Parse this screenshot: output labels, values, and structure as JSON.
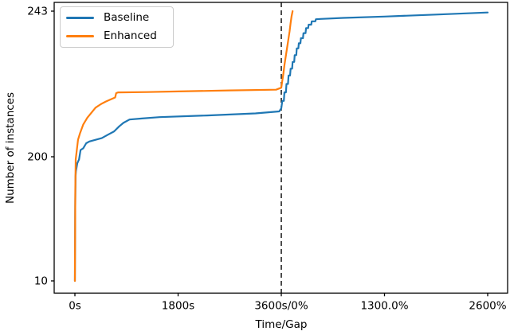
{
  "chart_data": {
    "type": "line",
    "title": "",
    "xlabel": "Time/Gap",
    "ylabel": "Number of instances",
    "x_axis": {
      "composite": true,
      "tick_labels": [
        "0s",
        "1800s",
        "3600s/0%",
        "1300.0%",
        "2600%"
      ],
      "tick_units": [
        0,
        1,
        2,
        3,
        4
      ],
      "unit_description": "composite axis: units 0-2 are solving time (u*1800 seconds, 0s to 3600s); units 2-4 are optimality gap ((u-2)*1300 percent, 0% to 2600%)",
      "vline_unit": 2,
      "vline_style": "black dashed vertical cutoff line at 3600s/0%"
    },
    "y_axis": {
      "tick_labels": [
        "10",
        "200",
        "243"
      ],
      "tick_values": [
        10,
        200,
        243
      ],
      "ylim": [
        10,
        243
      ],
      "scale_note": "non-linear axis: 10..200 compressed below, 200..243 expanded above"
    },
    "grid": false,
    "legend_position": "upper left",
    "series": [
      {
        "name": "Baseline",
        "color": "#1f77b4",
        "points": [
          [
            0,
            10
          ],
          [
            0.003,
            123
          ],
          [
            0.006,
            170
          ],
          [
            0.01,
            178
          ],
          [
            0.023,
            190
          ],
          [
            0.04,
            196
          ],
          [
            0.055,
            202
          ],
          [
            0.08,
            202.5
          ],
          [
            0.11,
            204
          ],
          [
            0.14,
            204.5
          ],
          [
            0.2,
            205
          ],
          [
            0.26,
            205.5
          ],
          [
            0.32,
            206.5
          ],
          [
            0.38,
            207.5
          ],
          [
            0.43,
            209
          ],
          [
            0.47,
            210
          ],
          [
            0.53,
            211
          ],
          [
            0.65,
            211.3
          ],
          [
            0.82,
            211.7
          ],
          [
            1.28,
            212.2
          ],
          [
            1.75,
            212.8
          ],
          [
            1.98,
            213.4
          ],
          [
            2.0,
            214.3
          ],
          [
            2.01,
            216.5
          ],
          [
            2.025,
            216.5
          ],
          [
            2.03,
            219
          ],
          [
            2.045,
            219
          ],
          [
            2.05,
            221.5
          ],
          [
            2.065,
            221.5
          ],
          [
            2.07,
            224
          ],
          [
            2.085,
            224
          ],
          [
            2.09,
            226
          ],
          [
            2.105,
            226
          ],
          [
            2.11,
            228
          ],
          [
            2.125,
            228
          ],
          [
            2.13,
            230
          ],
          [
            2.145,
            230
          ],
          [
            2.15,
            232
          ],
          [
            2.165,
            232
          ],
          [
            2.17,
            233.5
          ],
          [
            2.185,
            233.5
          ],
          [
            2.19,
            235
          ],
          [
            2.21,
            235
          ],
          [
            2.215,
            236.5
          ],
          [
            2.235,
            236.5
          ],
          [
            2.24,
            238
          ],
          [
            2.26,
            238
          ],
          [
            2.265,
            239
          ],
          [
            2.29,
            239
          ],
          [
            2.295,
            240
          ],
          [
            2.33,
            240
          ],
          [
            2.335,
            240.6
          ],
          [
            2.38,
            240.7
          ],
          [
            2.6,
            241
          ],
          [
            3.0,
            241.4
          ],
          [
            3.5,
            242
          ],
          [
            4.0,
            242.6
          ]
        ]
      },
      {
        "name": "Enhanced",
        "color": "#ff7f0e",
        "points": [
          [
            0,
            10
          ],
          [
            0.004,
            150
          ],
          [
            0.008,
            196
          ],
          [
            0.015,
            201
          ],
          [
            0.03,
            205
          ],
          [
            0.05,
            207
          ],
          [
            0.08,
            209.5
          ],
          [
            0.12,
            211.5
          ],
          [
            0.16,
            213
          ],
          [
            0.2,
            214.5
          ],
          [
            0.25,
            215.5
          ],
          [
            0.3,
            216.3
          ],
          [
            0.35,
            217
          ],
          [
            0.39,
            217.5
          ],
          [
            0.4,
            218.8
          ],
          [
            0.42,
            219
          ],
          [
            0.7,
            219.1
          ],
          [
            1.0,
            219.3
          ],
          [
            1.5,
            219.6
          ],
          [
            1.95,
            219.8
          ],
          [
            2.0,
            220.4
          ],
          [
            2.01,
            222.5
          ],
          [
            2.02,
            224.5
          ],
          [
            2.03,
            227
          ],
          [
            2.04,
            229
          ],
          [
            2.05,
            231
          ],
          [
            2.06,
            233
          ],
          [
            2.07,
            235
          ],
          [
            2.08,
            237
          ],
          [
            2.09,
            239.5
          ],
          [
            2.1,
            241.5
          ],
          [
            2.11,
            243
          ]
        ]
      }
    ]
  }
}
